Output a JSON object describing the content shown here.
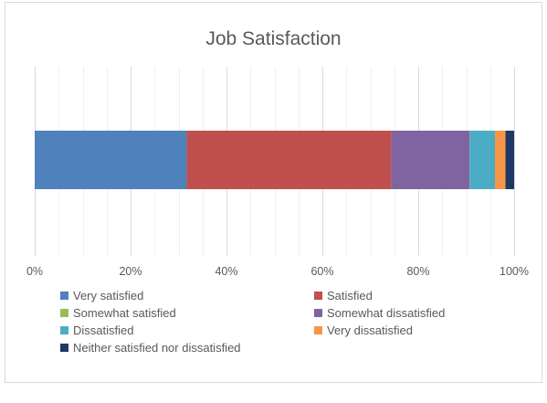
{
  "chart_data": {
    "type": "bar",
    "orientation": "horizontal",
    "stacking": "percent",
    "title": "Job Satisfaction",
    "xlabel": "",
    "ylabel": "",
    "xlim": [
      0,
      100
    ],
    "x_tick_values": [
      0,
      20,
      40,
      60,
      80,
      100
    ],
    "x_tick_labels": [
      "0%",
      "20%",
      "40%",
      "60%",
      "80%",
      "100%"
    ],
    "grid": true,
    "legend_position": "bottom",
    "series": [
      {
        "name": "Very satisfied",
        "values": [
          31.7
        ],
        "color": "#4f81bd"
      },
      {
        "name": "Satisfied",
        "values": [
          42.7
        ],
        "color": "#c0504d"
      },
      {
        "name": "Somewhat satisfied",
        "values": [
          0
        ],
        "color": "#9bbb59"
      },
      {
        "name": "Somewhat dissatisfied",
        "values": [
          16.3
        ],
        "color": "#8064a2"
      },
      {
        "name": "Dissatisfied",
        "values": [
          5.3
        ],
        "color": "#4bacc6"
      },
      {
        "name": "Very dissatisfied",
        "values": [
          2.2
        ],
        "color": "#f79646"
      },
      {
        "name": "Neither satisfied nor dissatisfied",
        "values": [
          1.8
        ],
        "color": "#1f3864"
      }
    ]
  }
}
